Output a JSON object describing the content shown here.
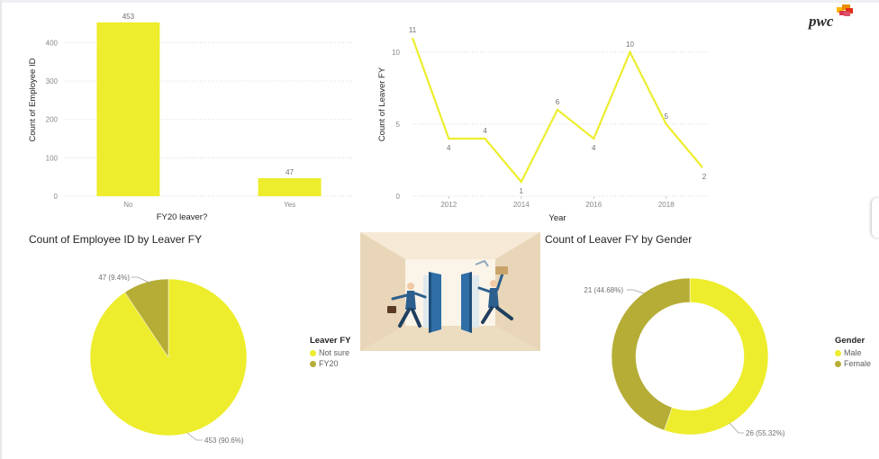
{
  "colors": {
    "yellow": "#eded2d",
    "olive": "#b5ad35",
    "line": "#eded2d"
  },
  "brand": {
    "logo_text": "pwc"
  },
  "bar_chart": {
    "xlabel": "FY20 leaver?",
    "ylabel": "Count of Employee ID",
    "y_ticks": [
      "0",
      "100",
      "200",
      "300",
      "400"
    ],
    "data_labels": [
      "453",
      "47"
    ]
  },
  "line_chart": {
    "xlabel": "Year",
    "ylabel": "Count of Leaver FY",
    "y_ticks": [
      "0",
      "5",
      "10"
    ],
    "x_ticks": [
      "2012",
      "2014",
      "2016",
      "2018"
    ],
    "data_labels": [
      "11",
      "4",
      "4",
      "1",
      "6",
      "4",
      "10",
      "5",
      "2"
    ]
  },
  "pie_chart": {
    "title": "Count of Employee ID by Leaver FY",
    "legend_title": "Leaver FY",
    "legend_items": [
      "Not sure",
      "FY20"
    ],
    "data_labels": [
      "47 (9.4%)",
      "453 (90.6%)"
    ]
  },
  "donut_chart": {
    "title": "Count of Leaver FY by Gender",
    "legend_title": "Gender",
    "legend_items": [
      "Male",
      "Female"
    ],
    "data_labels": [
      "21 (44.68%)",
      "26 (55.32%)"
    ]
  },
  "chart_data": [
    {
      "type": "bar",
      "categories": [
        "No",
        "Yes"
      ],
      "values": [
        453,
        47
      ],
      "xlabel": "FY20 leaver?",
      "ylabel": "Count of Employee ID",
      "ylim": [
        0,
        453
      ],
      "grid": true
    },
    {
      "type": "line",
      "x": [
        2011,
        2012,
        2013,
        2014,
        2015,
        2016,
        2017,
        2018,
        2019
      ],
      "values": [
        11,
        4,
        4,
        1,
        6,
        4,
        10,
        5,
        2
      ],
      "xlabel": "Year",
      "ylabel": "Count of Leaver FY",
      "ylim": [
        0,
        11
      ],
      "xlim": [
        2011,
        2019
      ],
      "grid": true
    },
    {
      "type": "pie",
      "title": "Count of Employee ID by Leaver FY",
      "categories": [
        "Not sure",
        "FY20"
      ],
      "values": [
        453,
        47
      ],
      "legend": "right"
    },
    {
      "type": "pie",
      "title": "Count of Leaver FY by Gender",
      "categories": [
        "Male",
        "Female"
      ],
      "values": [
        26,
        21
      ],
      "legend": "right"
    }
  ]
}
